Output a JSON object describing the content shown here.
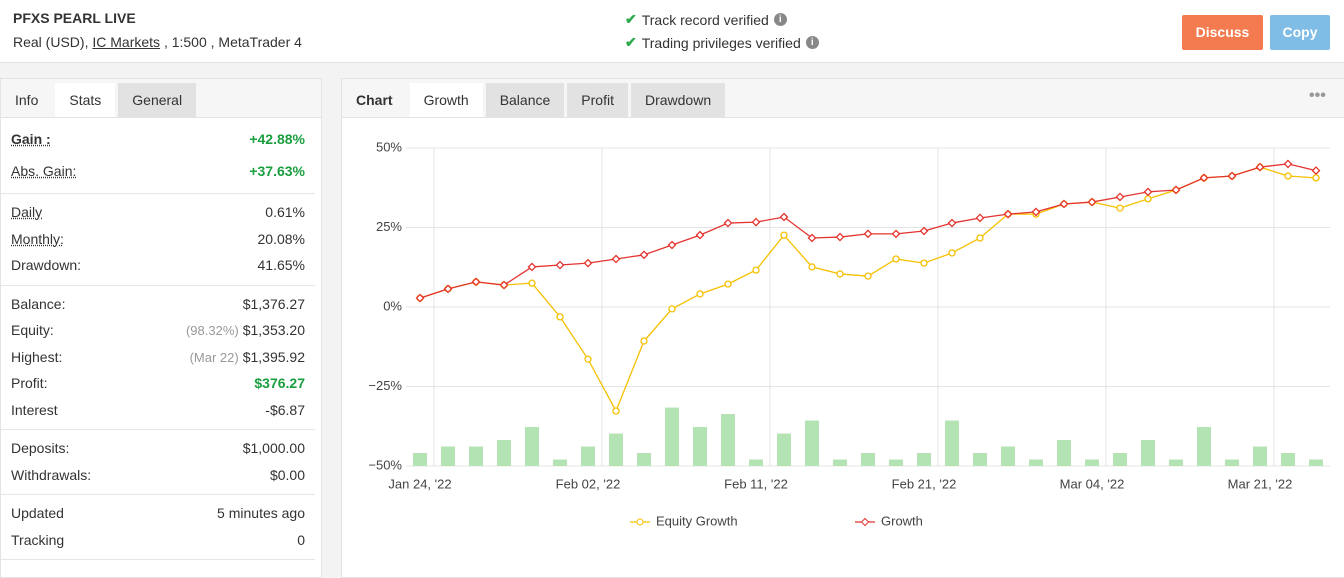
{
  "header": {
    "title": "PFXS PEARL LIVE",
    "account": "Real (USD),",
    "broker": "IC Markets",
    "details": ", 1:500 , MetaTrader 4",
    "verifications": [
      "Track record verified",
      "Trading privileges verified"
    ],
    "buttons": [
      "Discuss",
      "Copy"
    ]
  },
  "left_panel": {
    "tabs": [
      "Info",
      "Stats",
      "General"
    ],
    "active_tab": 1,
    "groups": [
      [
        {
          "label": "Gain :",
          "value": "+42.88%",
          "color": "#1a9e3f",
          "strong": true
        },
        {
          "label": "Abs. Gain:",
          "value": "+37.63%",
          "color": "#1a9e3f"
        }
      ],
      [
        {
          "label": "Daily",
          "value": "0.61%"
        },
        {
          "label": "Monthly:",
          "value": "20.08%"
        },
        {
          "label": "Drawdown:",
          "value": "41.65%"
        }
      ],
      [
        {
          "label": "Balance:",
          "value": "$1,376.27"
        },
        {
          "label": "Equity:",
          "note": "(98.32%)",
          "value": "$1,353.20"
        },
        {
          "label": "Highest:",
          "note": "(Mar 22)",
          "value": "$1,395.92"
        },
        {
          "label": "Profit:",
          "value": "$376.27",
          "color": "#1a9e3f"
        },
        {
          "label": "Interest",
          "value": "-$6.87"
        }
      ],
      [
        {
          "label": "Deposits:",
          "value": "$1,000.00"
        },
        {
          "label": "Withdrawals:",
          "value": "$0.00"
        }
      ],
      [
        {
          "label": "Updated",
          "value": "5 minutes ago"
        },
        {
          "label": "Tracking",
          "value": "0"
        }
      ]
    ]
  },
  "right_panel": {
    "label": "Chart",
    "tabs": [
      "Growth",
      "Balance",
      "Profit",
      "Drawdown"
    ],
    "active_tab": 0,
    "menu": "•••"
  },
  "chart_data": {
    "type": "line",
    "categories": [
      "Jan 24, '22",
      null,
      null,
      null,
      null,
      null,
      "Feb 02, '22",
      null,
      null,
      null,
      null,
      null,
      "Feb 11, '22",
      null,
      null,
      null,
      null,
      null,
      "Feb 21, '22",
      null,
      null,
      null,
      null,
      null,
      "Mar 04, '22",
      null,
      null,
      null,
      null,
      null,
      "Mar 21, '22",
      null,
      null
    ],
    "ylim": [
      -50,
      50
    ],
    "yticks": [
      {
        "value": 50,
        "label": "50%"
      },
      {
        "value": 25,
        "label": "25%"
      },
      {
        "value": 0,
        "label": "0%"
      },
      {
        "value": -25,
        "label": "−25%"
      },
      {
        "value": -50,
        "label": "−50%"
      }
    ],
    "y2lim": [
      0,
      49
    ],
    "grid": true,
    "series": [
      {
        "name": "Equity Growth",
        "color": "#f5c000",
        "marker": "circle",
        "values": [
          2.8,
          5.7,
          7.9,
          6.9,
          7.5,
          -3.1,
          -16.4,
          -32.7,
          -10.7,
          -0.6,
          4.1,
          7.2,
          11.6,
          22.6,
          12.6,
          10.4,
          9.7,
          15.1,
          13.8,
          17.0,
          21.7,
          29.2,
          29.2,
          32.4,
          33.0,
          31.1,
          34.0,
          36.8,
          40.6,
          41.2,
          44.0,
          41.2,
          40.6
        ]
      },
      {
        "name": "Growth",
        "color": "#e3342f",
        "marker": "diamond",
        "values": [
          2.8,
          5.7,
          7.9,
          6.9,
          12.6,
          13.2,
          13.8,
          15.1,
          16.4,
          19.5,
          22.6,
          26.4,
          26.7,
          28.3,
          21.7,
          22.0,
          23.0,
          23.0,
          23.9,
          26.4,
          28.0,
          29.2,
          29.9,
          32.4,
          33.0,
          34.6,
          36.2,
          36.8,
          40.6,
          41.2,
          44.0,
          45.0,
          42.9
        ]
      }
    ],
    "bar_series": {
      "color": "#b3e2b3",
      "axis": "y2",
      "values": [
        2,
        3,
        3,
        4,
        6,
        1,
        3,
        5,
        2,
        9,
        6,
        8,
        1,
        5,
        7,
        1,
        2,
        1,
        2,
        7,
        2,
        3,
        1,
        4,
        1,
        2,
        4,
        1,
        6,
        1,
        3,
        2,
        1
      ]
    }
  }
}
